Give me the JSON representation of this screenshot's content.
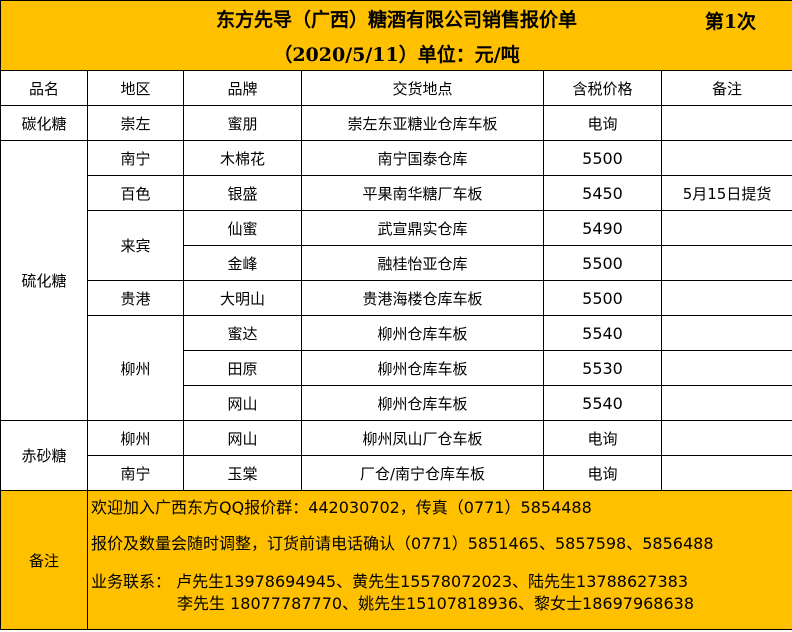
{
  "title": "东方先导（广西）糖酒有限公司销售报价单",
  "issue": "第1次",
  "subtitle": "（2020/5/11）单位：元/吨",
  "headers": [
    "品名",
    "地区",
    "品牌",
    "交货地点",
    "含税价格",
    "备注"
  ],
  "rows": [
    {
      "product": "碳化糖",
      "region": "崇左",
      "brand": "蜜朋",
      "location": "崇左东亚糖业仓库车板",
      "price": "电询",
      "note": ""
    },
    {
      "product": "硫化糖",
      "region": "南宁",
      "brand": "木棉花",
      "location": "南宁国泰仓库",
      "price": "5500",
      "note": ""
    },
    {
      "region": "百色",
      "brand": "银盛",
      "location": "平果南华糖厂车板",
      "price": "5450",
      "note": "5月15日提货"
    },
    {
      "region": "来宾",
      "brand": "仙蜜",
      "location": "武宣鼎实仓库",
      "price": "5490",
      "note": ""
    },
    {
      "brand": "金峰",
      "location": "融桂怡亚仓库",
      "price": "5500",
      "note": ""
    },
    {
      "region": "贵港",
      "brand": "大明山",
      "location": "贵港海楼仓库车板",
      "price": "5500",
      "note": ""
    },
    {
      "region": "柳州",
      "brand": "蜜达",
      "location": "柳州仓库车板",
      "price": "5540",
      "note": ""
    },
    {
      "brand": "田原",
      "location": "柳州仓库车板",
      "price": "5530",
      "note": ""
    },
    {
      "brand": "网山",
      "location": "柳州仓库车板",
      "price": "5540",
      "note": ""
    },
    {
      "product": "赤砂糖",
      "region": "柳州",
      "brand": "网山",
      "location": "柳州凤山厂仓车板",
      "price": "电询",
      "note": ""
    },
    {
      "region": "南宁",
      "brand": "玉棠",
      "location": "厂仓/南宁仓库车板",
      "price": "电询",
      "note": ""
    }
  ],
  "notes": {
    "label": "备注",
    "line1": "欢迎加入广西东方QQ报价群：442030702，传真（0771）5854488",
    "line2": "报价及数量会随时调整，订货前请电话确认（0771）5851465、5857598、5856488",
    "line3": "业务联系：  卢先生13978694945、黄先生15578072023、陆先生13788627383",
    "line4": "李先生 18077787770、姚先生15107818936、黎女士18697968638"
  },
  "colors": {
    "header_fill": "#FFC000"
  }
}
